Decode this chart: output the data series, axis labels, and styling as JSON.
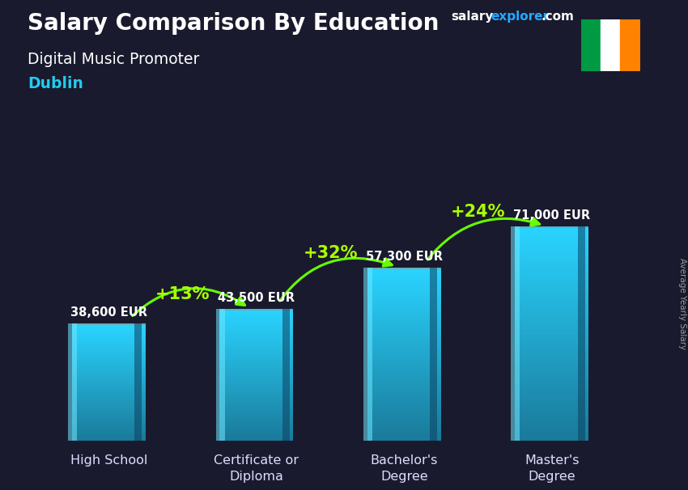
{
  "title_salary": "Salary Comparison By Education",
  "subtitle_job": "Digital Music Promoter",
  "subtitle_city": "Dublin",
  "ylabel": "Average Yearly Salary",
  "categories": [
    "High School",
    "Certificate or\nDiploma",
    "Bachelor's\nDegree",
    "Master's\nDegree"
  ],
  "values": [
    38600,
    43500,
    57300,
    71000
  ],
  "labels": [
    "38,600 EUR",
    "43,500 EUR",
    "57,300 EUR",
    "71,000 EUR"
  ],
  "pct_changes": [
    "+13%",
    "+32%",
    "+24%"
  ],
  "bar_color_main": "#29b6d8",
  "bar_color_light": "#5cd8f0",
  "bar_color_dark": "#1a7a9a",
  "bar_color_top": "#a0eeff",
  "background_color": "#1a1a2e",
  "overlay_color": "#0d0d1a",
  "title_color": "#ffffff",
  "subtitle_job_color": "#ffffff",
  "subtitle_city_color": "#22ccee",
  "label_color": "#ffffff",
  "pct_color": "#aaff00",
  "arrow_color": "#66ff00",
  "website_salary_color": "#ffffff",
  "website_explorer_color": "#22aaff",
  "website_com_color": "#ffffff",
  "flag_green": "#009a44",
  "flag_white": "#ffffff",
  "flag_orange": "#ff8200",
  "ylim_max": 90000,
  "bar_width": 0.5,
  "x_positions": [
    0,
    1,
    2,
    3
  ]
}
